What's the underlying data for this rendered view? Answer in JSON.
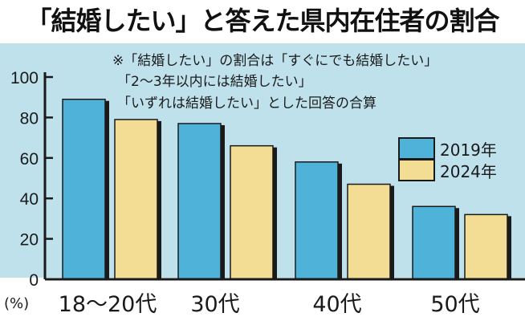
{
  "title": "「結婚したい」と答えた県内在住者の割合",
  "colors": {
    "plot_bg": "#bfe1ec",
    "series_2019": "#4fb3d9",
    "series_2024": "#f3dc93",
    "bar_shadow": "#1a1a1a"
  },
  "chart_data": {
    "type": "bar",
    "categories": [
      "18～20代",
      "30代",
      "40代",
      "50代"
    ],
    "series": [
      {
        "name": "2019年",
        "values": [
          89,
          77,
          58,
          36
        ]
      },
      {
        "name": "2024年",
        "values": [
          79,
          66,
          47,
          32
        ]
      }
    ],
    "ylim": [
      0,
      100
    ],
    "yticks": [
      "0",
      "20",
      "40",
      "60",
      "80",
      "100"
    ],
    "ylabel": "(%)",
    "grid": false,
    "legend_position": "right",
    "annotation": [
      "※「結婚したい」の割合は「すぐにでも結婚したい」",
      "「2～3年以内には結婚したい」",
      "「いずれは結婚したい」とした回答の合算"
    ]
  }
}
